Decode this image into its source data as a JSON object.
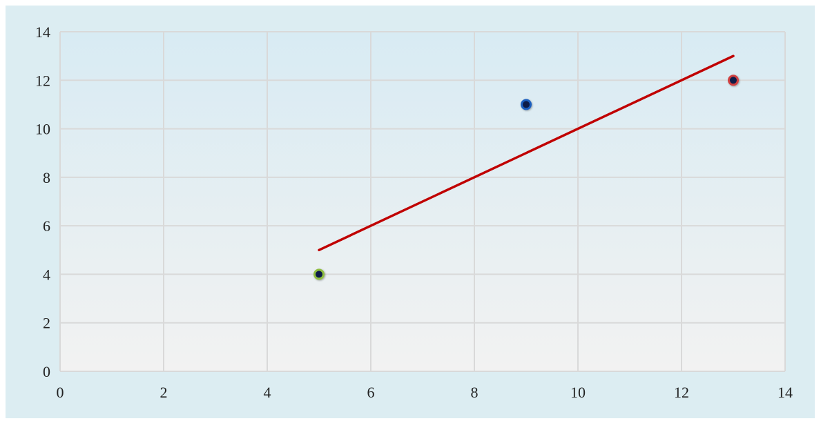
{
  "chart_data": {
    "type": "scatter",
    "title": "",
    "xlabel": "",
    "ylabel": "",
    "xlim": [
      0,
      14
    ],
    "ylim": [
      0,
      14
    ],
    "x_ticks": [
      0,
      2,
      4,
      6,
      8,
      10,
      12,
      14
    ],
    "y_ticks": [
      0,
      2,
      4,
      6,
      8,
      10,
      12,
      14
    ],
    "grid": true,
    "legend": "none",
    "points": [
      {
        "x": 5,
        "y": 4,
        "fill": "#0d1f4a",
        "edge": "#8fbf3f"
      },
      {
        "x": 9,
        "y": 11,
        "fill": "#0d1f4a",
        "edge": "#1f5fbf"
      },
      {
        "x": 13,
        "y": 12,
        "fill": "#0d1f4a",
        "edge": "#d04040"
      }
    ],
    "line": {
      "points": [
        {
          "x": 5,
          "y": 5
        },
        {
          "x": 13,
          "y": 13
        }
      ],
      "color": "#c00000"
    },
    "colors": {
      "frame_background": "#dcedf2",
      "plot_gradient_top": "#d8ebf3",
      "plot_gradient_bottom": "#f2f2f2",
      "grid": "#d9d9d9"
    }
  }
}
